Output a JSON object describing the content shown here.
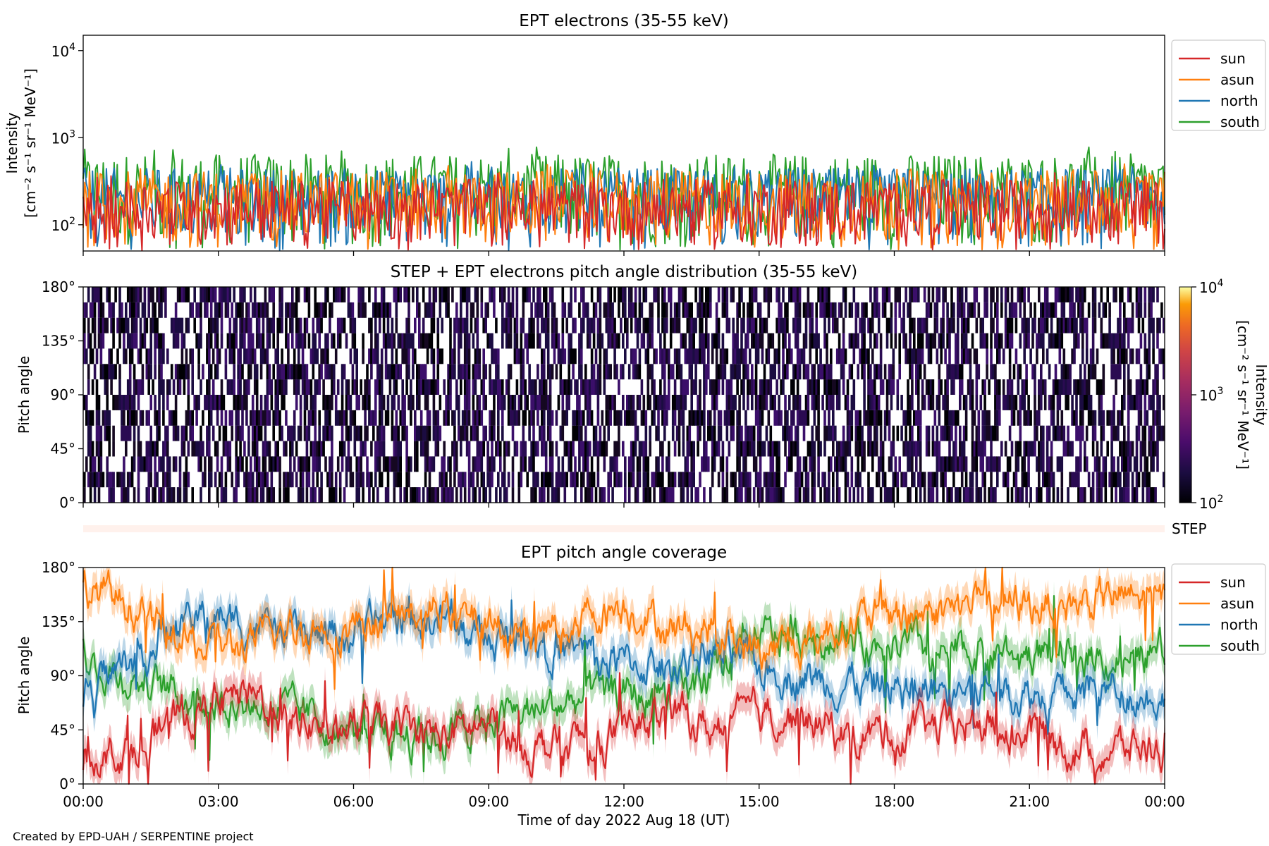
{
  "footer": {
    "credit": "Created by EPD-UAH / SERPENTINE project"
  },
  "colors": {
    "sun": "#d62728",
    "asun": "#ff7f0e",
    "north": "#1f77b4",
    "south": "#2ca02c"
  },
  "chart_data": [
    {
      "type": "line",
      "title": "EPT electrons (35-55 keV)",
      "ylabel_line1": "Intensity",
      "ylabel_line2": "[cm⁻² s⁻¹ sr⁻¹ MeV⁻¹]",
      "yscale": "log",
      "ylim": [
        50,
        15000
      ],
      "yticks": [
        {
          "base": "10",
          "exp": "2"
        },
        {
          "base": "10",
          "exp": "3"
        },
        {
          "base": "10",
          "exp": "4"
        }
      ],
      "legend_position": "outside-right-top",
      "series": [
        {
          "name": "sun",
          "color": "#d62728",
          "typical_range": [
            50,
            330
          ]
        },
        {
          "name": "asun",
          "color": "#ff7f0e",
          "typical_range": [
            50,
            420
          ]
        },
        {
          "name": "north",
          "color": "#1f77b4",
          "typical_range": [
            50,
            450
          ]
        },
        {
          "name": "south",
          "color": "#2ca02c",
          "typical_range": [
            50,
            650
          ]
        }
      ]
    },
    {
      "type": "heatmap",
      "title": "STEP + EPT electrons pitch angle distribution (35-55 keV)",
      "ylabel": "Pitch angle",
      "ylim": [
        0,
        180
      ],
      "yticks": [
        "0°",
        "45°",
        "90°",
        "135°",
        "180°"
      ],
      "colorbar": {
        "label_line1": "Intensity",
        "label_line2": "[cm⁻² s⁻¹ sr⁻¹ MeV⁻¹]",
        "scale": "log",
        "range": [
          100,
          10000
        ],
        "colormap": "inferno",
        "ticks": [
          {
            "base": "10",
            "exp": "2"
          },
          {
            "base": "10",
            "exp": "3"
          },
          {
            "base": "10",
            "exp": "4"
          }
        ]
      }
    },
    {
      "type": "bar",
      "label": "STEP"
    },
    {
      "type": "line",
      "title": "EPT pitch angle coverage",
      "ylabel": "Pitch angle",
      "ylim": [
        0,
        180
      ],
      "yticks": [
        "0°",
        "45°",
        "90°",
        "135°",
        "180°"
      ],
      "xlabel": "Time of day 2022 Aug 18 (UT)",
      "xticks": [
        "00:00",
        "03:00",
        "06:00",
        "09:00",
        "12:00",
        "15:00",
        "18:00",
        "21:00",
        "00:00"
      ],
      "legend_position": "outside-right-top",
      "series": [
        {
          "name": "sun",
          "color": "#d62728",
          "start": 20,
          "end": 35,
          "mean_by_hour": [
            25,
            30,
            50,
            70,
            70,
            50,
            50,
            45,
            40,
            50,
            30,
            35,
            40,
            60,
            45,
            60,
            55,
            40,
            45,
            45,
            50,
            45,
            30,
            30,
            30
          ]
        },
        {
          "name": "asun",
          "color": "#ff7f0e",
          "start": 160,
          "end": 150,
          "mean_by_hour": [
            165,
            150,
            120,
            110,
            120,
            130,
            135,
            140,
            145,
            130,
            120,
            140,
            150,
            130,
            130,
            110,
            120,
            135,
            140,
            145,
            150,
            150,
            150,
            155,
            150
          ]
        },
        {
          "name": "north",
          "color": "#1f77b4",
          "start": 70,
          "end": 70,
          "mean_by_hour": [
            80,
            100,
            130,
            140,
            130,
            120,
            125,
            140,
            135,
            120,
            125,
            110,
            100,
            100,
            110,
            95,
            90,
            85,
            80,
            80,
            80,
            75,
            75,
            80,
            70
          ]
        },
        {
          "name": "south",
          "color": "#2ca02c",
          "start": 110,
          "end": 110,
          "mean_by_hour": [
            100,
            90,
            75,
            70,
            65,
            55,
            45,
            40,
            40,
            55,
            60,
            70,
            75,
            70,
            90,
            120,
            125,
            120,
            115,
            110,
            110,
            110,
            110,
            105,
            110
          ]
        }
      ]
    }
  ]
}
